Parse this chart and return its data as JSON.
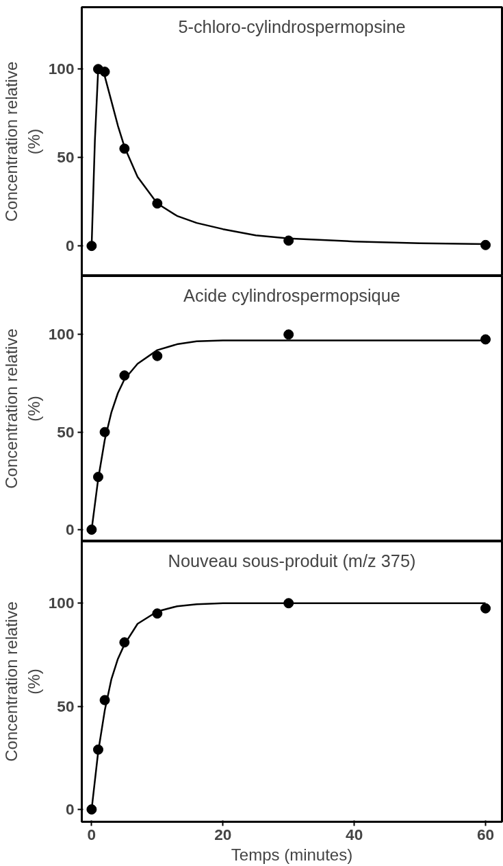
{
  "chart_data": [
    {
      "type": "scatter",
      "title": "5-chloro-cylindrospermopsine",
      "ylabel": "Concentration relative\n(%)",
      "xlim": [
        -1.5,
        62.5
      ],
      "ylim": [
        -17,
        135
      ],
      "yticks": [
        0,
        50,
        100
      ],
      "tick_labels": "y",
      "grid": false,
      "series": [
        {
          "color": "#000000",
          "marker": "circle",
          "x": [
            0,
            1,
            2,
            5,
            10,
            30,
            60
          ],
          "values": [
            0,
            100,
            98.5,
            55,
            24,
            3,
            0.5
          ]
        },
        {
          "type": "line",
          "color": "#000000",
          "line_style": "solid",
          "x": [
            0,
            0.5,
            1,
            1.5,
            2,
            3,
            4,
            5,
            7,
            10,
            13,
            16,
            20,
            25,
            30,
            40,
            50,
            60
          ],
          "values": [
            0,
            60,
            100,
            101,
            96,
            82,
            68,
            56,
            39,
            24,
            17,
            13,
            9.5,
            6,
            4.2,
            2.5,
            1.5,
            1
          ]
        }
      ]
    },
    {
      "type": "scatter",
      "title": "Acide cylindrospermopsique",
      "ylabel": "Concentration relative\n(%)",
      "xlim": [
        -1.5,
        62.5
      ],
      "ylim": [
        -6,
        130
      ],
      "yticks": [
        0,
        50,
        100
      ],
      "tick_labels": "y",
      "grid": false,
      "series": [
        {
          "color": "#000000",
          "marker": "circle",
          "x": [
            0,
            1,
            2,
            5,
            10,
            30,
            60
          ],
          "values": [
            0,
            27,
            50,
            79,
            89,
            100,
            97.5
          ]
        },
        {
          "type": "line",
          "color": "#000000",
          "line_style": "solid",
          "x": [
            0,
            1,
            2,
            3,
            4,
            5,
            7,
            10,
            13,
            16,
            20,
            30,
            60
          ],
          "values": [
            0,
            26,
            46,
            60,
            70,
            77,
            85,
            92,
            95,
            96.5,
            97,
            97,
            97
          ]
        }
      ]
    },
    {
      "type": "scatter",
      "title": "Nouveau sous-produit (m/z 375)",
      "ylabel": "Concentration relative\n(%)",
      "xlabel": "Temps (minutes)",
      "xlim": [
        -1.5,
        62.5
      ],
      "ylim": [
        -6,
        130
      ],
      "xticks": [
        0,
        20,
        40,
        60
      ],
      "yticks": [
        0,
        50,
        100
      ],
      "grid": false,
      "series": [
        {
          "color": "#000000",
          "marker": "circle",
          "x": [
            0,
            1,
            2,
            5,
            10,
            30,
            60
          ],
          "values": [
            0,
            29,
            53,
            81,
            95,
            100,
            97.5
          ]
        },
        {
          "type": "line",
          "color": "#000000",
          "line_style": "solid",
          "x": [
            0,
            1,
            2,
            3,
            4,
            5,
            7,
            10,
            13,
            16,
            20,
            30,
            60
          ],
          "values": [
            0,
            28,
            48,
            63,
            73,
            80,
            90,
            96,
            98.5,
            99.5,
            100,
            100,
            100
          ]
        }
      ]
    }
  ]
}
